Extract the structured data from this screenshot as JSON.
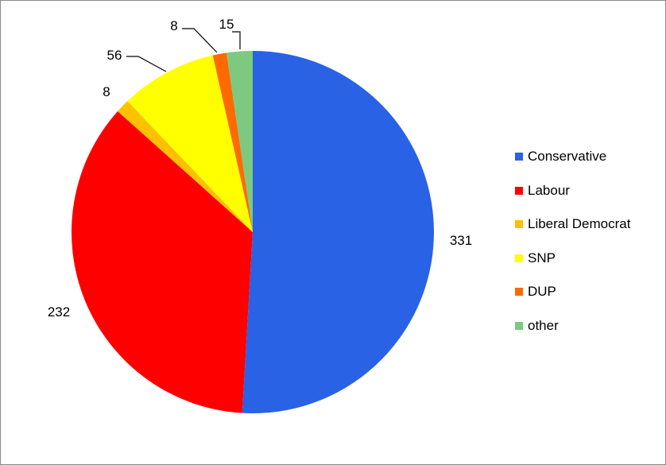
{
  "chart_data": {
    "type": "pie",
    "title": "",
    "slices": [
      {
        "name": "Conservative",
        "value": 331,
        "color": "#2962e4"
      },
      {
        "name": "Labour",
        "value": 232,
        "color": "#ff0000"
      },
      {
        "name": "Liberal Democrat",
        "value": 8,
        "color": "#ffc000"
      },
      {
        "name": "SNP",
        "value": 56,
        "color": "#ffff00"
      },
      {
        "name": "DUP",
        "value": 8,
        "color": "#ff6a00"
      },
      {
        "name": "other",
        "value": 15,
        "color": "#7dc97f"
      }
    ],
    "legend_position": "right",
    "start_angle_deg": 0,
    "direction": "clockwise"
  }
}
